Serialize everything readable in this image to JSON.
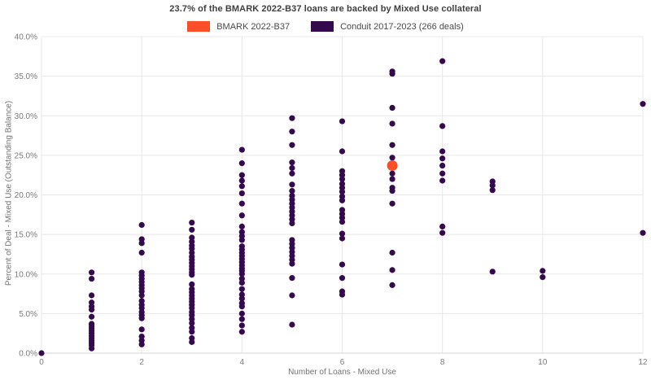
{
  "title": "23.7% of the BMARK 2022-B37 loans are backed by Mixed Use collateral",
  "legend": [
    {
      "label": "BMARK 2022-B37",
      "color": "#fa4f28"
    },
    {
      "label": "Conduit 2017-2023 (266 deals)",
      "color": "#35094e"
    }
  ],
  "colors": {
    "bmark": "#fa4f28",
    "conduit": "#35094e",
    "grid": "#e8e8e8",
    "axis_line": "#d6d6d6",
    "tick_text": "#7a7a7a"
  },
  "chart_data": {
    "type": "scatter",
    "title": "23.7% of the BMARK 2022-B37 loans are backed by Mixed Use collateral",
    "xlabel": "Number of Loans - Mixed Use",
    "ylabel": "Percent of Deal - Mixed Use (Outstanding Balance)",
    "xlim": [
      0,
      12
    ],
    "ylim": [
      0,
      40
    ],
    "x_ticks": [
      0,
      2,
      4,
      6,
      8,
      10,
      12
    ],
    "y_ticks": [
      0,
      5,
      10,
      15,
      20,
      25,
      30,
      35,
      40
    ],
    "y_tick_labels": [
      "0.0%",
      "5.0%",
      "10.0%",
      "15.0%",
      "20.0%",
      "25.0%",
      "30.0%",
      "35.0%",
      "40.0%"
    ],
    "grid": true,
    "legend_position": "top-center",
    "series": [
      {
        "name": "Conduit 2017-2023 (266 deals)",
        "color": "#35094e",
        "marker_radius": 3.6,
        "points": [
          [
            0,
            0.0
          ],
          [
            1,
            10.2
          ],
          [
            1,
            9.4
          ],
          [
            1,
            7.3
          ],
          [
            1,
            6.4
          ],
          [
            1,
            5.9
          ],
          [
            1,
            5.5
          ],
          [
            1,
            4.6
          ],
          [
            1,
            3.7
          ],
          [
            1,
            3.4
          ],
          [
            1,
            3.1
          ],
          [
            1,
            2.8
          ],
          [
            1,
            2.5
          ],
          [
            1,
            2.2
          ],
          [
            1,
            1.9
          ],
          [
            1,
            1.6
          ],
          [
            1,
            1.3
          ],
          [
            1,
            1.0
          ],
          [
            1,
            0.6
          ],
          [
            2,
            16.2
          ],
          [
            2,
            14.4
          ],
          [
            2,
            13.9
          ],
          [
            2,
            12.7
          ],
          [
            2,
            10.2
          ],
          [
            2,
            9.8
          ],
          [
            2,
            9.4
          ],
          [
            2,
            9.0
          ],
          [
            2,
            8.6
          ],
          [
            2,
            8.2
          ],
          [
            2,
            7.8
          ],
          [
            2,
            7.3
          ],
          [
            2,
            6.6
          ],
          [
            2,
            6.1
          ],
          [
            2,
            5.7
          ],
          [
            2,
            5.2
          ],
          [
            2,
            4.8
          ],
          [
            2,
            4.4
          ],
          [
            2,
            3.0
          ],
          [
            2,
            2.1
          ],
          [
            2,
            1.6
          ],
          [
            2,
            1.1
          ],
          [
            3,
            16.5
          ],
          [
            3,
            15.6
          ],
          [
            3,
            14.6
          ],
          [
            3,
            14.1
          ],
          [
            3,
            13.6
          ],
          [
            3,
            13.2
          ],
          [
            3,
            12.7
          ],
          [
            3,
            12.2
          ],
          [
            3,
            11.8
          ],
          [
            3,
            11.4
          ],
          [
            3,
            11.0
          ],
          [
            3,
            10.6
          ],
          [
            3,
            10.2
          ],
          [
            3,
            9.9
          ],
          [
            3,
            8.7
          ],
          [
            3,
            8.1
          ],
          [
            3,
            7.7
          ],
          [
            3,
            7.3
          ],
          [
            3,
            6.9
          ],
          [
            3,
            6.5
          ],
          [
            3,
            6.1
          ],
          [
            3,
            5.7
          ],
          [
            3,
            5.2
          ],
          [
            3,
            4.8
          ],
          [
            3,
            4.3
          ],
          [
            3,
            3.8
          ],
          [
            3,
            3.2
          ],
          [
            3,
            2.7
          ],
          [
            3,
            1.9
          ],
          [
            3,
            1.4
          ],
          [
            4,
            25.7
          ],
          [
            4,
            24.0
          ],
          [
            4,
            22.5
          ],
          [
            4,
            21.8
          ],
          [
            4,
            21.1
          ],
          [
            4,
            20.2
          ],
          [
            4,
            18.9
          ],
          [
            4,
            17.4
          ],
          [
            4,
            16.0
          ],
          [
            4,
            15.3
          ],
          [
            4,
            14.8
          ],
          [
            4,
            14.3
          ],
          [
            4,
            13.5
          ],
          [
            4,
            13.1
          ],
          [
            4,
            12.7
          ],
          [
            4,
            12.3
          ],
          [
            4,
            11.9
          ],
          [
            4,
            11.5
          ],
          [
            4,
            11.1
          ],
          [
            4,
            10.7
          ],
          [
            4,
            10.4
          ],
          [
            4,
            10.0
          ],
          [
            4,
            9.4
          ],
          [
            4,
            8.9
          ],
          [
            4,
            8.1
          ],
          [
            4,
            7.4
          ],
          [
            4,
            6.9
          ],
          [
            4,
            6.3
          ],
          [
            4,
            5.9
          ],
          [
            4,
            5.0
          ],
          [
            4,
            4.3
          ],
          [
            4,
            3.5
          ],
          [
            4,
            2.7
          ],
          [
            5,
            29.7
          ],
          [
            5,
            28.0
          ],
          [
            5,
            26.3
          ],
          [
            5,
            24.1
          ],
          [
            5,
            23.4
          ],
          [
            5,
            22.7
          ],
          [
            5,
            21.3
          ],
          [
            5,
            20.5
          ],
          [
            5,
            19.9
          ],
          [
            5,
            19.4
          ],
          [
            5,
            18.9
          ],
          [
            5,
            18.4
          ],
          [
            5,
            17.9
          ],
          [
            5,
            17.4
          ],
          [
            5,
            16.9
          ],
          [
            5,
            16.4
          ],
          [
            5,
            14.3
          ],
          [
            5,
            13.8
          ],
          [
            5,
            13.3
          ],
          [
            5,
            12.8
          ],
          [
            5,
            12.3
          ],
          [
            5,
            11.8
          ],
          [
            5,
            11.3
          ],
          [
            5,
            9.5
          ],
          [
            5,
            7.3
          ],
          [
            5,
            3.6
          ],
          [
            6,
            29.3
          ],
          [
            6,
            25.5
          ],
          [
            6,
            23.0
          ],
          [
            6,
            22.5
          ],
          [
            6,
            22.0
          ],
          [
            6,
            21.4
          ],
          [
            6,
            20.9
          ],
          [
            6,
            20.4
          ],
          [
            6,
            19.8
          ],
          [
            6,
            19.3
          ],
          [
            6,
            18.1
          ],
          [
            6,
            17.6
          ],
          [
            6,
            17.1
          ],
          [
            6,
            16.6
          ],
          [
            6,
            15.1
          ],
          [
            6,
            14.5
          ],
          [
            6,
            11.2
          ],
          [
            6,
            9.5
          ],
          [
            6,
            7.8
          ],
          [
            6,
            7.4
          ],
          [
            7,
            35.6
          ],
          [
            7,
            35.3
          ],
          [
            7,
            31.0
          ],
          [
            7,
            29.0
          ],
          [
            7,
            26.3
          ],
          [
            7,
            24.7
          ],
          [
            7,
            22.7
          ],
          [
            7,
            22.0
          ],
          [
            7,
            20.9
          ],
          [
            7,
            20.5
          ],
          [
            7,
            18.9
          ],
          [
            7,
            12.7
          ],
          [
            7,
            10.5
          ],
          [
            7,
            8.6
          ],
          [
            8,
            36.9
          ],
          [
            8,
            28.7
          ],
          [
            8,
            25.5
          ],
          [
            8,
            24.6
          ],
          [
            8,
            23.7
          ],
          [
            8,
            22.7
          ],
          [
            8,
            21.8
          ],
          [
            8,
            16.0
          ],
          [
            8,
            15.2
          ],
          [
            9,
            21.7
          ],
          [
            9,
            21.2
          ],
          [
            9,
            20.6
          ],
          [
            9,
            10.3
          ],
          [
            10,
            10.4
          ],
          [
            10,
            9.6
          ],
          [
            12,
            31.5
          ],
          [
            12,
            15.2
          ]
        ]
      },
      {
        "name": "BMARK 2022-B37",
        "color": "#fa4f28",
        "marker_radius": 6.5,
        "points": [
          [
            7,
            23.7
          ]
        ]
      }
    ]
  }
}
